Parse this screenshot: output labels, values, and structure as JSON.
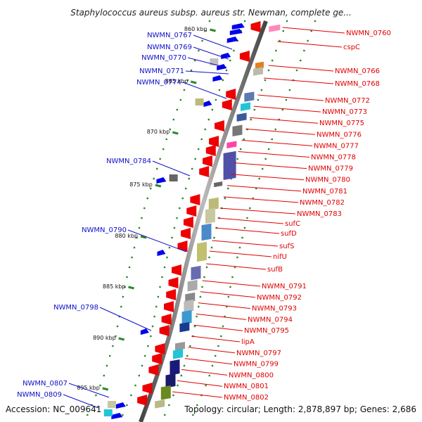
{
  "title": "Staphylococcus aureus subsp. aureus str. Newman, complete ge...",
  "footer": {
    "accession": "Accession: NC_009641",
    "info": "Topology: circular; Length: 2,878,897 bp; Genes: 2,686"
  },
  "ruler": [
    "860 kbp",
    "865 kbp",
    "870 kbp",
    "875 kbp",
    "880 kbp",
    "885 kbp",
    "890 kbp",
    "895 kbp"
  ],
  "genes_left": [
    "NWMN_0767",
    "NWMN_0769",
    "NWMN_0770",
    "NWMN_0771",
    "NWMN_0774",
    "NWMN_0784",
    "NWMN_0790",
    "NWMN_0798",
    "NWMN_0807",
    "NWMN_0809"
  ],
  "genes_right": [
    "NWMN_0760",
    "cspC",
    "NWMN_0766",
    "NWMN_0768",
    "NWMN_0772",
    "NWMN_0773",
    "NWMN_0775",
    "NWMN_0776",
    "NWMN_0777",
    "NWMN_0778",
    "NWMN_0779",
    "NWMN_0780",
    "NWMN_0781",
    "NWMN_0782",
    "NWMN_0783",
    "sufC",
    "sufD",
    "sufS",
    "nifU",
    "sufB",
    "NWMN_0791",
    "NWMN_0792",
    "NWMN_0793",
    "NWMN_0794",
    "NWMN_0795",
    "lipA",
    "NWMN_0797",
    "NWMN_0799",
    "NWMN_0800",
    "NWMN_0801",
    "NWMN_0802"
  ],
  "colors": {
    "forward_cds": "#0000ee",
    "reverse_cds": "#ee0000",
    "left_label": "#1010c8",
    "right_label": "#e00000",
    "tick": "#2a8a2a",
    "backbone": "#888888"
  }
}
